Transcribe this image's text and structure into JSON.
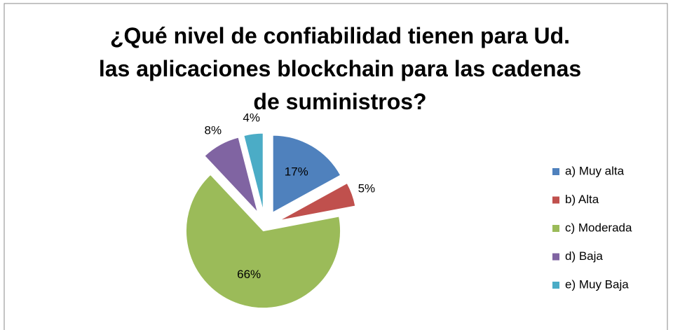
{
  "chart_data": {
    "type": "pie",
    "title": "¿Qué nivel de confiabilidad tienen para Ud. las aplicaciones blockchain para las cadenas de suministros?",
    "categories": [
      "a) Muy alta",
      "b) Alta",
      "c) Moderada",
      "d) Baja",
      "e) Muy Baja"
    ],
    "values": [
      17,
      5,
      66,
      8,
      4
    ],
    "value_labels": [
      "17%",
      "5%",
      "66%",
      "8%",
      "4%"
    ],
    "colors": [
      "#4f81bd",
      "#c0504d",
      "#9bbb59",
      "#8064a2",
      "#4bacc6"
    ],
    "legend": "right"
  }
}
